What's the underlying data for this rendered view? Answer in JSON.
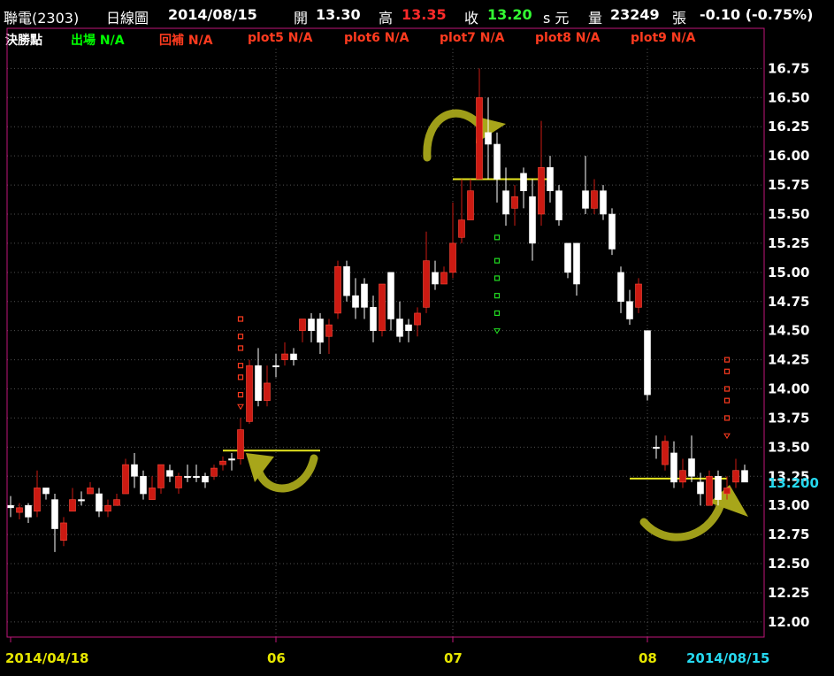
{
  "header": {
    "stock": "聯電(2303)",
    "period": "日線圖",
    "date": "2014/08/15",
    "open_label": "開",
    "open": "13.30",
    "high_label": "高",
    "high": "13.35",
    "close_label": "收",
    "close": "13.20",
    "unit": "s 元",
    "volume_label": "量",
    "volume": "23249",
    "volume_unit": "張",
    "change": "-0.10 (-0.75%)"
  },
  "indicators": {
    "title": "決勝點",
    "items": [
      {
        "label": "出場 N/A",
        "color": "#00ff00"
      },
      {
        "label": "回補 N/A",
        "color": "#ff3b1f"
      },
      {
        "label": "plot5 N/A",
        "color": "#ff3b1f"
      },
      {
        "label": "plot6 N/A",
        "color": "#ff3b1f"
      },
      {
        "label": "plot7 N/A",
        "color": "#ff3b1f"
      },
      {
        "label": "plot8 N/A",
        "color": "#ff3b1f"
      },
      {
        "label": "plot9 N/A",
        "color": "#ff3b1f"
      }
    ]
  },
  "colors": {
    "up": "#cc1a12",
    "down": "#ffffff",
    "grid": "#505050",
    "frame": "#c0167a",
    "axis_text": "#ffffff",
    "date_text": "#e6e600",
    "last_price": "#26d9f0",
    "support_line": "#e6e620",
    "arrow": "#a8a61a"
  },
  "chart_data": {
    "type": "candlestick",
    "title": "",
    "y_axis": {
      "position": "right",
      "ticks": [
        "12.00",
        "12.25",
        "12.50",
        "12.75",
        "13.00",
        "13.25",
        "13.50",
        "13.75",
        "14.00",
        "14.25",
        "14.50",
        "14.75",
        "15.00",
        "15.25",
        "15.50",
        "15.75",
        "16.00",
        "16.25",
        "16.50",
        "16.75"
      ],
      "ylim": [
        11.87,
        16.92
      ]
    },
    "x_axis": {
      "labels": [
        {
          "text": "2014/04/18",
          "index": 0
        },
        {
          "text": "06",
          "index": 30
        },
        {
          "text": "07",
          "index": 50
        },
        {
          "text": "08",
          "index": 72
        }
      ],
      "end_label": "2014/08/15"
    },
    "last_price_label": "13.200",
    "last_price": 13.2,
    "candles": [
      [
        13.0,
        12.98,
        13.08,
        12.9
      ],
      [
        12.94,
        12.98,
        13.02,
        12.88
      ],
      [
        13.0,
        12.9,
        13.02,
        12.85
      ],
      [
        12.95,
        13.15,
        13.3,
        12.9
      ],
      [
        13.15,
        13.1,
        13.15,
        13.05
      ],
      [
        13.05,
        12.8,
        13.1,
        12.6
      ],
      [
        12.7,
        12.85,
        12.9,
        12.65
      ],
      [
        12.95,
        13.05,
        13.15,
        12.95
      ],
      [
        13.05,
        13.05,
        13.12,
        13.0
      ],
      [
        13.1,
        13.15,
        13.2,
        13.1
      ],
      [
        13.1,
        12.95,
        13.15,
        12.9
      ],
      [
        12.95,
        13.0,
        13.05,
        12.9
      ],
      [
        13.0,
        13.05,
        13.1,
        13.0
      ],
      [
        13.1,
        13.35,
        13.4,
        13.1
      ],
      [
        13.35,
        13.25,
        13.45,
        13.15
      ],
      [
        13.25,
        13.1,
        13.3,
        13.05
      ],
      [
        13.05,
        13.15,
        13.25,
        13.05
      ],
      [
        13.15,
        13.35,
        13.35,
        13.1
      ],
      [
        13.3,
        13.25,
        13.35,
        13.2
      ],
      [
        13.15,
        13.25,
        13.28,
        13.1
      ],
      [
        13.25,
        13.25,
        13.35,
        13.2
      ],
      [
        13.25,
        13.25,
        13.35,
        13.2
      ],
      [
        13.25,
        13.2,
        13.28,
        13.15
      ],
      [
        13.25,
        13.32,
        13.35,
        13.22
      ],
      [
        13.35,
        13.38,
        13.42,
        13.3
      ],
      [
        13.4,
        13.4,
        13.45,
        13.3
      ],
      [
        13.4,
        13.65,
        13.75,
        13.35
      ],
      [
        13.72,
        14.2,
        14.25,
        13.7
      ],
      [
        14.2,
        13.9,
        14.35,
        13.85
      ],
      [
        13.9,
        14.05,
        14.2,
        13.85
      ],
      [
        14.2,
        14.2,
        14.3,
        14.1
      ],
      [
        14.25,
        14.3,
        14.4,
        14.2
      ],
      [
        14.3,
        14.25,
        14.35,
        14.2
      ],
      [
        14.5,
        14.6,
        14.6,
        14.4
      ],
      [
        14.6,
        14.5,
        14.65,
        14.4
      ],
      [
        14.6,
        14.4,
        14.65,
        14.3
      ],
      [
        14.45,
        14.55,
        14.6,
        14.3
      ],
      [
        14.65,
        15.05,
        15.1,
        14.6
      ],
      [
        15.05,
        14.8,
        15.1,
        14.75
      ],
      [
        14.8,
        14.7,
        14.95,
        14.6
      ],
      [
        14.9,
        14.7,
        14.95,
        14.6
      ],
      [
        14.7,
        14.5,
        14.8,
        14.4
      ],
      [
        14.5,
        14.9,
        14.9,
        14.45
      ],
      [
        15.0,
        14.6,
        15.0,
        14.5
      ],
      [
        14.6,
        14.45,
        14.75,
        14.4
      ],
      [
        14.55,
        14.5,
        14.6,
        14.4
      ],
      [
        14.55,
        14.65,
        14.7,
        14.45
      ],
      [
        14.7,
        15.1,
        15.35,
        14.65
      ],
      [
        15.0,
        14.9,
        15.1,
        14.85
      ],
      [
        14.9,
        15.0,
        15.05,
        14.9
      ],
      [
        15.0,
        15.25,
        15.6,
        14.95
      ],
      [
        15.3,
        15.45,
        15.8,
        15.25
      ],
      [
        15.45,
        15.7,
        15.8,
        15.45
      ],
      [
        15.8,
        16.5,
        16.75,
        15.8
      ],
      [
        16.2,
        16.1,
        16.5,
        15.8
      ],
      [
        16.1,
        15.8,
        16.2,
        15.6
      ],
      [
        15.7,
        15.5,
        15.9,
        15.4
      ],
      [
        15.55,
        15.65,
        15.75,
        15.4
      ],
      [
        15.85,
        15.7,
        15.9,
        15.55
      ],
      [
        15.65,
        15.25,
        15.8,
        15.1
      ],
      [
        15.5,
        15.9,
        16.3,
        15.4
      ],
      [
        15.9,
        15.7,
        16.0,
        15.6
      ],
      [
        15.7,
        15.45,
        15.75,
        15.4
      ],
      [
        15.25,
        15.0,
        15.25,
        14.95
      ],
      [
        15.25,
        14.9,
        15.25,
        14.8
      ],
      [
        15.7,
        15.55,
        16.0,
        15.5
      ],
      [
        15.55,
        15.7,
        15.8,
        15.5
      ],
      [
        15.7,
        15.5,
        15.75,
        15.45
      ],
      [
        15.5,
        15.2,
        15.55,
        15.15
      ],
      [
        15.0,
        14.75,
        15.05,
        14.65
      ],
      [
        14.75,
        14.6,
        14.85,
        14.55
      ],
      [
        14.7,
        14.9,
        14.95,
        14.65
      ],
      [
        14.5,
        13.95,
        14.5,
        13.9
      ],
      [
        13.5,
        13.5,
        13.6,
        13.4
      ],
      [
        13.35,
        13.55,
        13.6,
        13.3
      ],
      [
        13.45,
        13.2,
        13.55,
        13.15
      ],
      [
        13.2,
        13.3,
        13.4,
        13.15
      ],
      [
        13.4,
        13.25,
        13.6,
        13.2
      ],
      [
        13.2,
        13.1,
        13.28,
        13.0
      ],
      [
        13.0,
        13.25,
        13.3,
        13.0
      ],
      [
        13.25,
        13.05,
        13.3,
        13.0
      ],
      [
        13.1,
        13.15,
        13.25,
        13.05
      ],
      [
        13.2,
        13.3,
        13.4,
        13.15
      ],
      [
        13.3,
        13.2,
        13.35,
        13.2
      ]
    ],
    "support_lines": [
      {
        "from_index": 24,
        "to_index": 35,
        "y": 13.47
      },
      {
        "from_index": 50,
        "to_index": 61,
        "y": 15.8
      },
      {
        "from_index": 70,
        "to_index": 81,
        "y": 13.23
      }
    ],
    "dot_markers": [
      {
        "index": 26,
        "color": "#ff3b1f",
        "y_values": [
          13.85,
          13.95,
          14.1,
          14.2,
          14.35,
          14.45,
          14.6
        ]
      },
      {
        "index": 55,
        "color": "#22dd22",
        "y_values": [
          14.5,
          14.65,
          14.8,
          14.95,
          15.1,
          15.3
        ]
      },
      {
        "index": 81,
        "color": "#ff3b1f",
        "y_values": [
          13.6,
          13.75,
          13.9,
          14.0,
          14.15,
          14.25
        ]
      }
    ]
  }
}
